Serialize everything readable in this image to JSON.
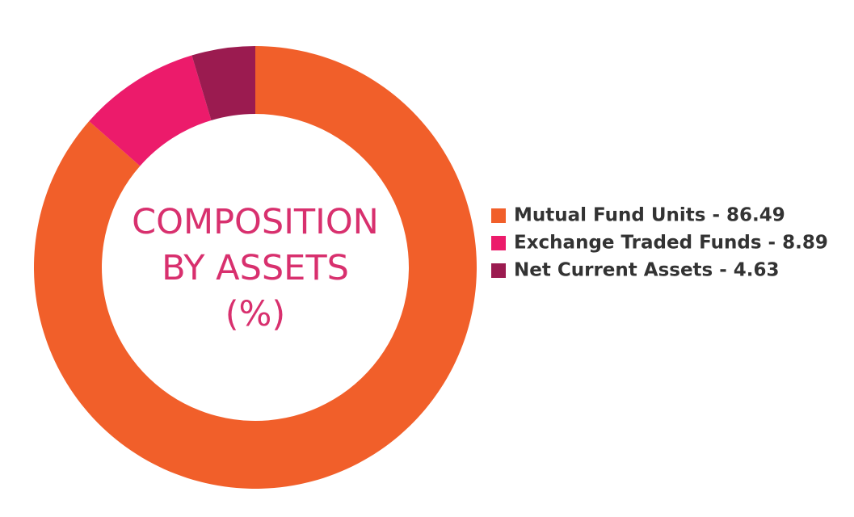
{
  "chart_data": {
    "type": "donut",
    "title": [
      "COMPOSITION",
      "BY ASSETS",
      "(%)"
    ],
    "categories": [
      "Mutual Fund Units - 86.49",
      "Exchange Traded Funds - 8.89",
      "Net Current Assets - 4.63"
    ],
    "values": [
      86.49,
      8.89,
      4.63
    ],
    "colors": [
      "#f15f2a",
      "#ec1b6b",
      "#9b1b50"
    ],
    "legend_position": "right"
  }
}
